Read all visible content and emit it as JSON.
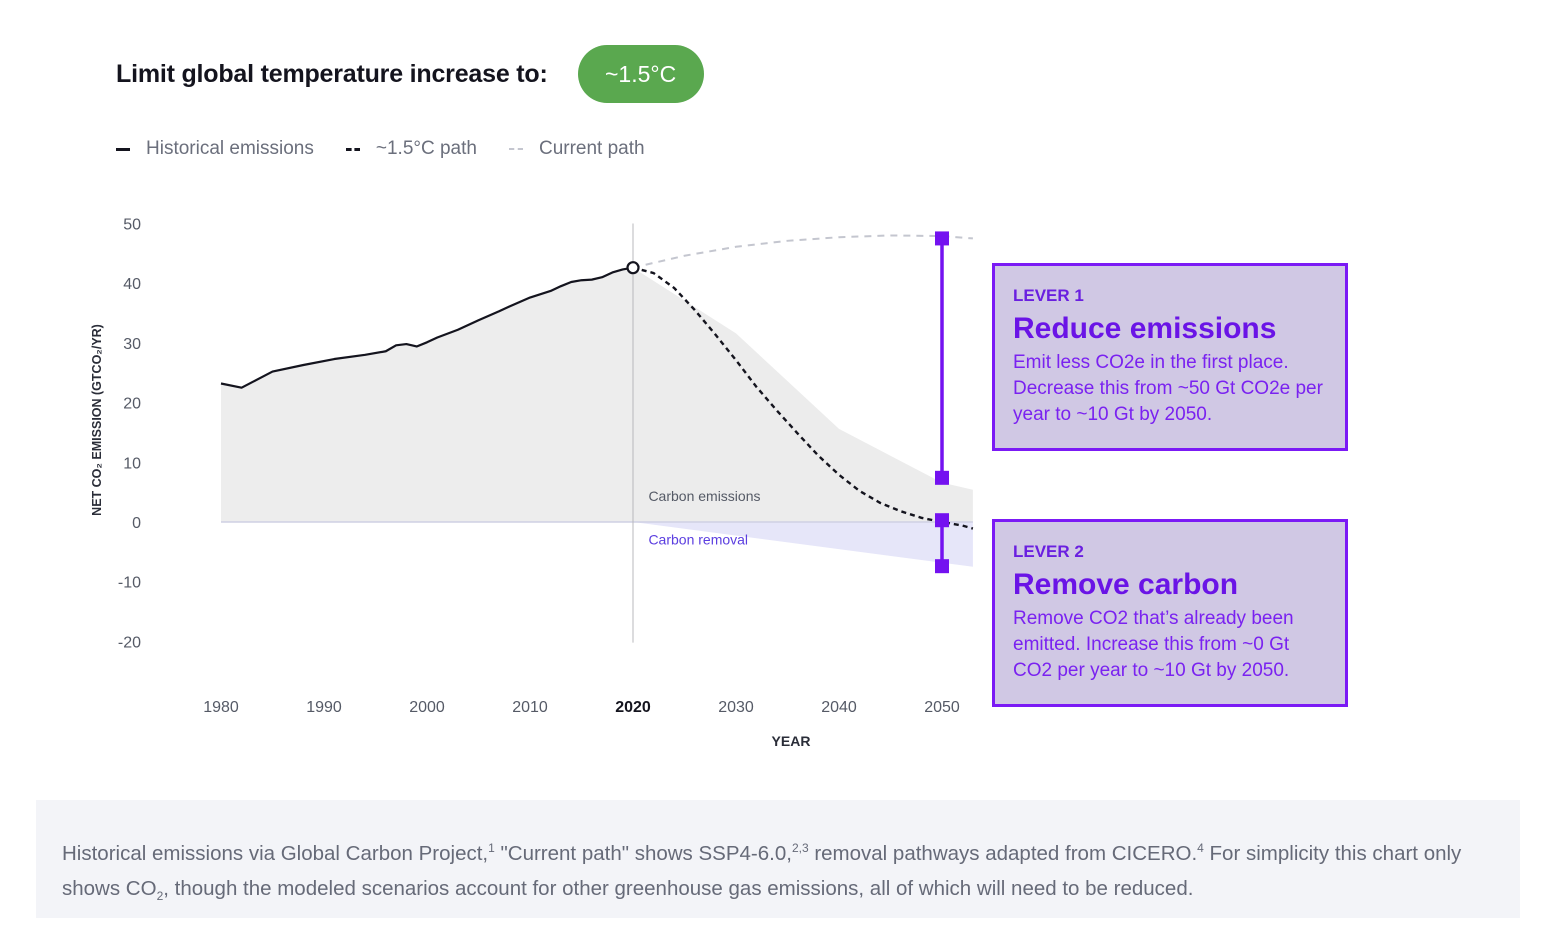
{
  "header": {
    "title": "Limit global temperature increase to:",
    "target_pill": "~1.5°C"
  },
  "legend": {
    "items": [
      {
        "label": "Historical emissions",
        "style": "solid"
      },
      {
        "label": "~1.5°C path",
        "style": "dashed"
      },
      {
        "label": "Current path",
        "style": "dashed-light"
      }
    ]
  },
  "chart_data": {
    "type": "line",
    "ylabel": "NET CO₂ EMISSION (GTCO₂/YR)",
    "xlabel": "YEAR",
    "xlim": [
      1980,
      2053
    ],
    "ylim": [
      -20,
      50
    ],
    "x_ticks": [
      1980,
      1990,
      2000,
      2010,
      2020,
      2030,
      2040,
      2050
    ],
    "y_ticks": [
      50,
      40,
      30,
      20,
      10,
      0,
      -10,
      -20
    ],
    "highlight_tick": 2020,
    "series": [
      {
        "name": "Historical emissions",
        "x": [
          1980,
          1982,
          1983,
          1985,
          1988,
          1991,
          1994,
          1996,
          1997,
          1998,
          1999,
          2000,
          2001,
          2003,
          2005,
          2007,
          2008,
          2010,
          2012,
          2013,
          2014,
          2015,
          2016,
          2017,
          2018,
          2019,
          2020
        ],
        "values": [
          23.2,
          22.5,
          23.4,
          25.2,
          26.3,
          27.3,
          28,
          28.6,
          29.6,
          29.8,
          29.4,
          30.1,
          30.9,
          32.2,
          33.8,
          35.3,
          36.1,
          37.6,
          38.7,
          39.5,
          40.2,
          40.5,
          40.6,
          41,
          41.8,
          42.3,
          42.6
        ]
      },
      {
        "name": "~1.5°C path",
        "x": [
          2020,
          2022,
          2024,
          2026,
          2028,
          2030,
          2032,
          2034,
          2036,
          2038,
          2040,
          2042,
          2044,
          2046,
          2048,
          2050,
          2052,
          2053
        ],
        "values": [
          42.6,
          41.7,
          39.2,
          35.5,
          31.4,
          27.1,
          22.6,
          18.6,
          14.8,
          11.1,
          7.9,
          5.2,
          3.2,
          1.8,
          0.7,
          0,
          -0.6,
          -1.1
        ]
      },
      {
        "name": "Current path",
        "x": [
          2020,
          2025,
          2030,
          2035,
          2040,
          2045,
          2050,
          2053
        ],
        "values": [
          42.6,
          44.6,
          46.1,
          47.1,
          47.7,
          48,
          47.9,
          47.5
        ]
      }
    ],
    "bands": [
      {
        "label": "Carbon emissions",
        "x": [
          2020,
          2030,
          2040,
          2050,
          2053
        ],
        "upper": [
          42.6,
          31.6,
          15.6,
          6.6,
          5.4
        ],
        "lower": [
          0,
          0,
          0,
          0,
          0
        ]
      },
      {
        "label": "Carbon removal",
        "x": [
          2020,
          2053
        ],
        "upper": [
          0,
          0
        ],
        "lower": [
          0,
          -7.5
        ]
      }
    ],
    "vertical_line_x": 2020,
    "lever_markers": {
      "x": 2050,
      "lever1": [
        47.5,
        7.4
      ],
      "lever2": [
        0.3,
        -7.4
      ]
    },
    "annotations": [
      {
        "text": "Carbon emissions",
        "x": 2021.5,
        "y": 3.5
      },
      {
        "text": "Carbon removal",
        "x": 2021.5,
        "y": -3.8
      }
    ]
  },
  "levers": [
    {
      "kicker": "LEVER 1",
      "title": "Reduce emissions",
      "desc": "Emit less CO2e in the first place. Decrease this from ~50 Gt CO2e per year to ~10 Gt by 2050."
    },
    {
      "kicker": "LEVER 2",
      "title": "Remove carbon",
      "desc": "Remove CO2 that’s already been emitted. Increase this from ~0 Gt CO2 per year to ~10 Gt by 2050."
    }
  ],
  "footnote": {
    "part1": "Historical emissions via Global Carbon Project,",
    "sup1": "1",
    "part2": " \"Current path\" shows SSP4-6.0,",
    "sup2": "2,3",
    "part3": " removal pathways adapted from CICERO.",
    "sup3": "4",
    "part4": " For simplicity this chart only shows CO",
    "sub1": "2",
    "part5": ", though the modeled scenarios account for other greenhouse gas emissions, all of which will need to be reduced."
  },
  "colors": {
    "accent": "#7412f0",
    "pill": "#5aa84f",
    "emission_band": "#ececec",
    "removal_band": "#e4e4f8",
    "removal_label": "#5b3ee0"
  }
}
